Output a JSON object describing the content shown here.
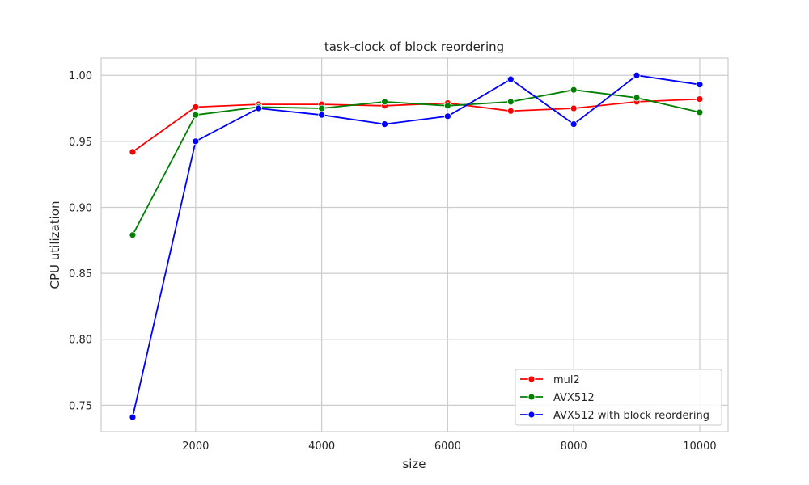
{
  "chart_data": {
    "type": "line",
    "title": "task-clock of block reordering",
    "xlabel": "size",
    "ylabel": "CPU utilization",
    "x": [
      1000,
      2000,
      3000,
      4000,
      5000,
      6000,
      7000,
      8000,
      9000,
      10000
    ],
    "xlim": [
      500,
      10450
    ],
    "ylim": [
      0.73,
      1.013
    ],
    "xticks": [
      "2000",
      "4000",
      "6000",
      "8000",
      "10000"
    ],
    "yticks": [
      "0.75",
      "0.80",
      "0.85",
      "0.90",
      "0.95",
      "1.00"
    ],
    "grid": true,
    "legend_position": "lower-right",
    "series": [
      {
        "name": "mul2",
        "color": "#ff0000",
        "values": [
          0.942,
          0.976,
          0.978,
          0.978,
          0.977,
          0.979,
          0.973,
          0.975,
          0.98,
          0.982
        ]
      },
      {
        "name": "AVX512",
        "color": "#008000",
        "values": [
          0.879,
          0.97,
          0.976,
          0.975,
          0.98,
          0.977,
          0.98,
          0.989,
          0.983,
          0.972
        ]
      },
      {
        "name": "AVX512 with block reordering",
        "color": "#0000ff",
        "values": [
          0.741,
          0.95,
          0.975,
          0.97,
          0.963,
          0.969,
          0.997,
          0.963,
          1.0,
          0.993
        ]
      }
    ]
  }
}
